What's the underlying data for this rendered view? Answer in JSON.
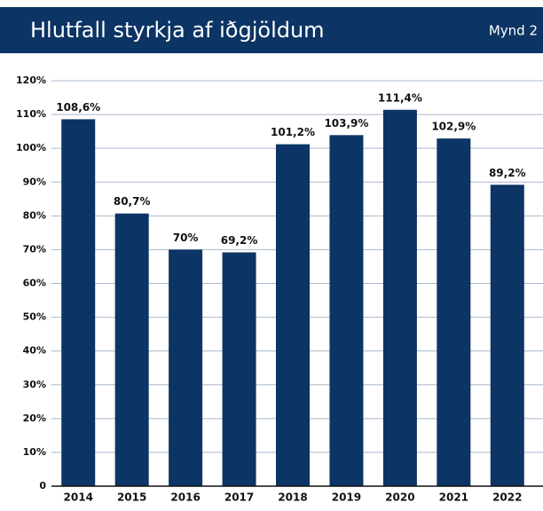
{
  "chart_data": {
    "type": "bar",
    "title": "Hlutfall styrkja af iðgjöldum",
    "subtitle": "Mynd 2",
    "categories": [
      "2014",
      "2015",
      "2016",
      "2017",
      "2018",
      "2019",
      "2020",
      "2021",
      "2022"
    ],
    "values": [
      108.6,
      80.7,
      70,
      69.2,
      101.2,
      103.9,
      111.4,
      102.9,
      89.2
    ],
    "value_labels": [
      "108,6%",
      "80,7%",
      "70%",
      "69,2%",
      "101,2%",
      "103,9%",
      "111,4%",
      "102,9%",
      "89,2%"
    ],
    "color": "#0c3464",
    "ylim": [
      0,
      120
    ],
    "yticks": [
      0,
      {
        "value": 10,
        "label": "10%"
      },
      {
        "value": 20,
        "label": "20%"
      },
      {
        "value": 30,
        "label": "30%"
      },
      {
        "value": 40,
        "label": "40%"
      },
      {
        "value": 50,
        "label": "50%"
      },
      {
        "value": 60,
        "label": "60%"
      },
      {
        "value": 70,
        "label": "70%"
      },
      {
        "value": 80,
        "label": "80%"
      },
      {
        "value": 90,
        "label": "90%"
      },
      {
        "value": 100,
        "label": "100%"
      },
      {
        "value": 110,
        "label": "110%"
      },
      {
        "value": 120,
        "label": "120%"
      }
    ],
    "grid": true
  }
}
